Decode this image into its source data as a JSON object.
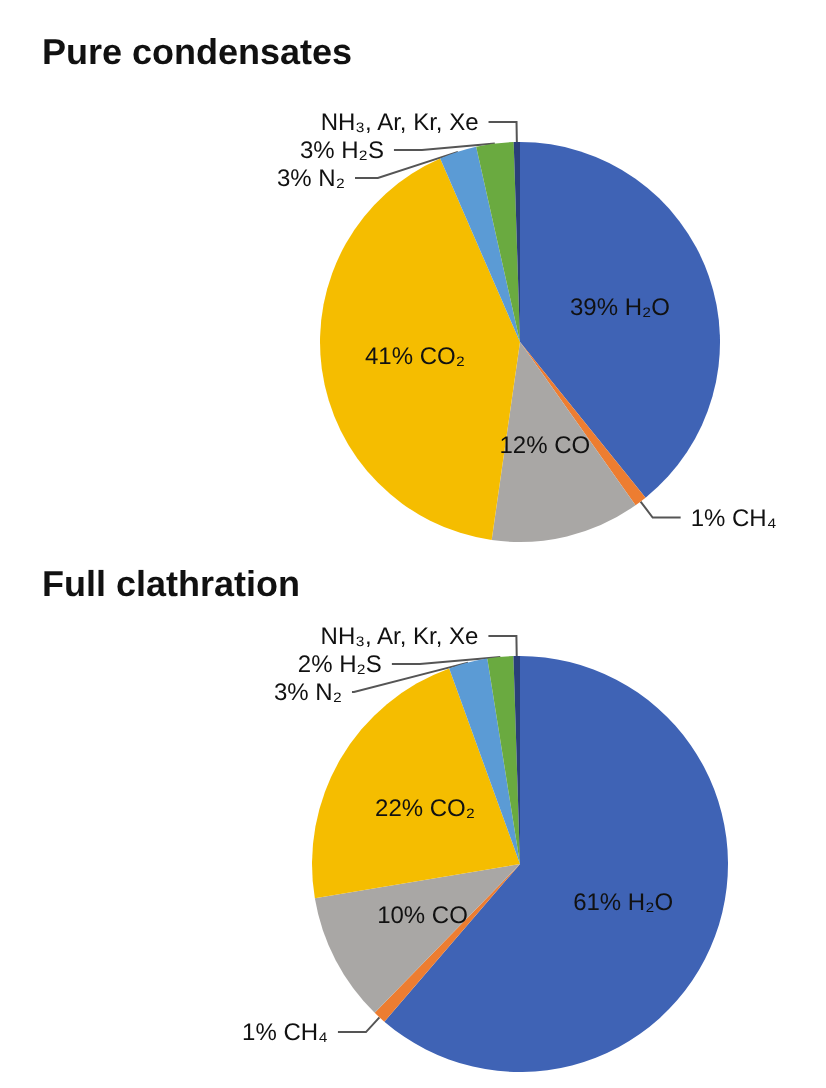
{
  "chart_data": [
    {
      "type": "pie",
      "title": "Pure condensates",
      "categories": [
        "39% H₂O",
        "1% CH₄",
        "12% CO",
        "41% CO₂",
        "3% N₂",
        "3% H₂S",
        "NH₃, Ar, Kr, Xe"
      ],
      "values": [
        39,
        1,
        12,
        41,
        3,
        3,
        0.5
      ],
      "colors": [
        "#3f63b5",
        "#ed7d31",
        "#a9a7a5",
        "#f5bd00",
        "#5b9bd5",
        "#6aaa40",
        "#2a3f7a"
      ],
      "legend": false
    },
    {
      "type": "pie",
      "title": "Full clathration",
      "categories": [
        "61% H₂O",
        "1% CH₄",
        "10% CO",
        "22% CO₂",
        "3% N₂",
        "2% H₂S",
        "NH₃, Ar, Kr, Xe"
      ],
      "values": [
        61,
        1,
        10,
        22,
        3,
        2,
        0.5
      ],
      "colors": [
        "#3f63b5",
        "#ed7d31",
        "#a9a7a5",
        "#f5bd00",
        "#5b9bd5",
        "#6aaa40",
        "#2a3f7a"
      ],
      "legend": false
    }
  ]
}
